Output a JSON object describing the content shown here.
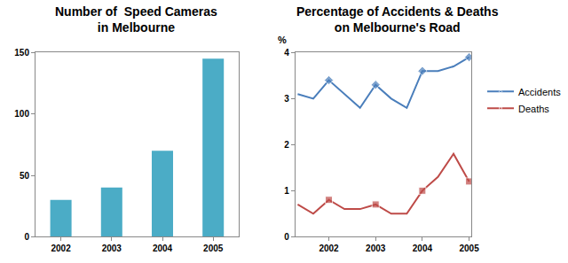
{
  "chart_data": [
    {
      "type": "bar",
      "title": "Number of  Speed Cameras\nin Melbourne",
      "categories": [
        "2002",
        "2003",
        "2004",
        "2005"
      ],
      "values": [
        30,
        40,
        70,
        145
      ],
      "color": "#4bacc6",
      "ylim": [
        0,
        150
      ],
      "yticks": [
        0,
        50,
        100,
        150
      ],
      "grid": false
    },
    {
      "type": "line",
      "title": "Percentage of Accidents & Deaths\non Melbourne's Road",
      "ylabel": "%",
      "categories": [
        null,
        null,
        "2002",
        null,
        null,
        "2003",
        null,
        null,
        "2004",
        null,
        null,
        "2005"
      ],
      "series": [
        {
          "name": "Accidents",
          "color": "#4a7ebb",
          "marker": "diamond",
          "values": [
            3.1,
            3.0,
            3.4,
            3.1,
            2.8,
            3.3,
            3.0,
            2.8,
            3.6,
            3.6,
            3.7,
            3.9
          ]
        },
        {
          "name": "Deaths",
          "color": "#be4b48",
          "marker": "square",
          "values": [
            0.7,
            0.5,
            0.8,
            0.6,
            0.6,
            0.7,
            0.5,
            0.5,
            1.0,
            1.3,
            1.8,
            1.2
          ]
        }
      ],
      "ylim": [
        0,
        4
      ],
      "yticks": [
        0,
        1,
        2,
        3,
        4
      ],
      "grid": false,
      "legend": "right"
    }
  ]
}
